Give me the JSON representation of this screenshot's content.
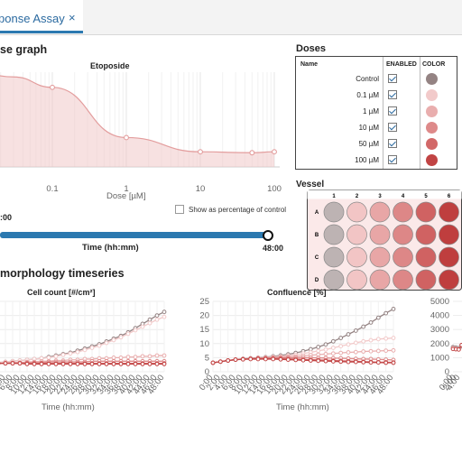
{
  "tab": {
    "label": "ponse Assay",
    "close": "×"
  },
  "dose_response": {
    "section_title": "se graph",
    "chart_title": "Etoposide",
    "xlabel": "Dose [µM]",
    "x_ticks": [
      "0.1",
      "1",
      "10",
      "100"
    ],
    "checkbox_label": "Show as percentage of control",
    "chart_data": {
      "type": "area",
      "title": "Etoposide",
      "xlabel": "Dose [µM]",
      "x_scale": "log",
      "x": [
        0.1,
        1,
        10,
        50,
        100
      ],
      "y_relative": [
        0.84,
        0.31,
        0.16,
        0.15,
        0.16
      ],
      "color": "#e8a4a4"
    }
  },
  "time_slider": {
    "left_label": ":00",
    "right_label": "48:00",
    "axis_label": "Time (hh:mm)",
    "value_fraction": 1.0,
    "color": "#2b79b0"
  },
  "doses": {
    "title": "Doses",
    "headers": {
      "name": "Name",
      "enabled": "ENABLED",
      "color": "COLOR"
    },
    "items": [
      {
        "name": "Control",
        "color": "#948383"
      },
      {
        "name": "0.1 µM",
        "color": "#f2caca"
      },
      {
        "name": "1 µM",
        "color": "#e9aeae"
      },
      {
        "name": "10 µM",
        "color": "#de8a8a"
      },
      {
        "name": "50 µM",
        "color": "#d26868"
      },
      {
        "name": "100 µM",
        "color": "#c14444"
      }
    ]
  },
  "vessel": {
    "title": "Vessel",
    "columns": [
      "1",
      "2",
      "3",
      "4",
      "5",
      "6"
    ],
    "rows": [
      "A",
      "B",
      "C",
      "D"
    ],
    "well_colors": [
      "#bdb3b3",
      "#f2c5c5",
      "#e8a6a6",
      "#dd8787",
      "#d06262",
      "#bf3e3e"
    ]
  },
  "timeseries": {
    "section_title": "morphology timeseries",
    "x_ticks": [
      "0:00",
      "2:00",
      "4:00",
      "6:00",
      "8:00",
      "10:00",
      "12:00",
      "14:00",
      "16:00",
      "18:00",
      "20:00",
      "22:00",
      "24:00",
      "26:00",
      "28:00",
      "30:00",
      "32:00",
      "34:00",
      "36:00",
      "38:00",
      "40:00",
      "42:00",
      "44:00",
      "46:00",
      "48:00"
    ],
    "charts": [
      {
        "title": "Cell count [#/cm²]",
        "xlabel": "Time (hh:mm)",
        "chart_data": {
          "type": "line",
          "x_hours": [
            0,
            2,
            4,
            6,
            8,
            10,
            12,
            14,
            16,
            18,
            20,
            22,
            24,
            26,
            28,
            30,
            32,
            34,
            36,
            38,
            40,
            42,
            44,
            46,
            48
          ],
          "series_relative": [
            {
              "color": "#948383",
              "values": [
                0.12,
                0.13,
                0.14,
                0.15,
                0.16,
                0.17,
                0.18,
                0.19,
                0.21,
                0.23,
                0.25,
                0.27,
                0.3,
                0.33,
                0.36,
                0.39,
                0.43,
                0.47,
                0.51,
                0.56,
                0.62,
                0.68,
                0.74,
                0.8,
                0.85
              ]
            },
            {
              "color": "#f2caca",
              "values": [
                0.12,
                0.13,
                0.14,
                0.15,
                0.16,
                0.17,
                0.18,
                0.19,
                0.2,
                0.22,
                0.24,
                0.26,
                0.28,
                0.31,
                0.34,
                0.37,
                0.41,
                0.45,
                0.49,
                0.54,
                0.59,
                0.64,
                0.69,
                0.74,
                0.78
              ]
            },
            {
              "color": "#e9aeae",
              "values": [
                0.12,
                0.12,
                0.13,
                0.13,
                0.13,
                0.14,
                0.14,
                0.15,
                0.15,
                0.16,
                0.16,
                0.17,
                0.17,
                0.18,
                0.18,
                0.19,
                0.19,
                0.2,
                0.2,
                0.21,
                0.21,
                0.22,
                0.22,
                0.23,
                0.23
              ]
            },
            {
              "color": "#de8a8a",
              "values": [
                0.12,
                0.12,
                0.12,
                0.13,
                0.13,
                0.13,
                0.13,
                0.13,
                0.14,
                0.14,
                0.14,
                0.14,
                0.14,
                0.14,
                0.15,
                0.15,
                0.15,
                0.15,
                0.15,
                0.15,
                0.15,
                0.15,
                0.15,
                0.15,
                0.15
              ]
            },
            {
              "color": "#d26868",
              "values": [
                0.12,
                0.12,
                0.12,
                0.12,
                0.12,
                0.12,
                0.12,
                0.12,
                0.12,
                0.12,
                0.12,
                0.12,
                0.12,
                0.12,
                0.12,
                0.12,
                0.12,
                0.12,
                0.12,
                0.12,
                0.12,
                0.12,
                0.12,
                0.12,
                0.12
              ]
            },
            {
              "color": "#c14444",
              "values": [
                0.12,
                0.12,
                0.12,
                0.12,
                0.12,
                0.11,
                0.11,
                0.11,
                0.11,
                0.11,
                0.11,
                0.11,
                0.11,
                0.11,
                0.11,
                0.11,
                0.11,
                0.11,
                0.11,
                0.11,
                0.11,
                0.11,
                0.11,
                0.11,
                0.11
              ]
            }
          ]
        }
      },
      {
        "title": "Confluence [%]",
        "xlabel": "Time (hh:mm)",
        "y_ticks": [
          "0",
          "5",
          "10",
          "15",
          "20",
          "25"
        ],
        "chart_data": {
          "type": "line",
          "ylim": [
            0,
            25
          ],
          "x_hours": [
            0,
            2,
            4,
            6,
            8,
            10,
            12,
            14,
            16,
            18,
            20,
            22,
            24,
            26,
            28,
            30,
            32,
            34,
            36,
            38,
            40,
            42,
            44,
            46,
            48
          ],
          "series": [
            {
              "color": "#948383",
              "values": [
                3.2,
                3.6,
                4.0,
                4.3,
                4.6,
                4.8,
                5.0,
                5.2,
                5.5,
                5.8,
                6.2,
                6.7,
                7.3,
                8.0,
                8.8,
                9.7,
                10.8,
                12.0,
                13.3,
                14.6,
                16.0,
                17.5,
                19.2,
                20.8,
                22.3
              ]
            },
            {
              "color": "#f2caca",
              "values": [
                3.2,
                3.6,
                4.0,
                4.3,
                4.5,
                4.7,
                4.9,
                5.1,
                5.3,
                5.5,
                5.8,
                6.1,
                6.5,
                6.9,
                7.4,
                7.9,
                8.5,
                9.1,
                9.7,
                10.3,
                10.8,
                11.2,
                11.6,
                11.8,
                12.0
              ]
            },
            {
              "color": "#e9aeae",
              "values": [
                3.2,
                3.6,
                4.0,
                4.3,
                4.5,
                4.7,
                4.9,
                5.0,
                5.1,
                5.2,
                5.4,
                5.5,
                5.7,
                5.9,
                6.1,
                6.3,
                6.5,
                6.7,
                6.9,
                7.0,
                7.2,
                7.3,
                7.4,
                7.5,
                7.6
              ]
            },
            {
              "color": "#de8a8a",
              "values": [
                3.2,
                3.6,
                4.0,
                4.3,
                4.5,
                4.7,
                4.8,
                4.9,
                4.9,
                5.0,
                5.0,
                5.0,
                5.0,
                5.0,
                4.9,
                4.9,
                4.8,
                4.8,
                4.7,
                4.6,
                4.5,
                4.5,
                4.4,
                4.3,
                4.2
              ]
            },
            {
              "color": "#d26868",
              "values": [
                3.2,
                3.6,
                4.0,
                4.3,
                4.5,
                4.6,
                4.7,
                4.7,
                4.7,
                4.7,
                4.6,
                4.5,
                4.4,
                4.3,
                4.2,
                4.1,
                4.0,
                3.9,
                3.8,
                3.7,
                3.6,
                3.5,
                3.4,
                3.4,
                3.3
              ]
            },
            {
              "color": "#c14444",
              "values": [
                3.2,
                3.6,
                4.0,
                4.3,
                4.4,
                4.5,
                4.5,
                4.5,
                4.5,
                4.4,
                4.3,
                4.2,
                4.1,
                4.0,
                3.9,
                3.8,
                3.7,
                3.6,
                3.5,
                3.5,
                3.4,
                3.3,
                3.3,
                3.2,
                3.2
              ]
            }
          ]
        }
      },
      {
        "title": "",
        "xlabel": "",
        "y_ticks": [
          "0",
          "1000",
          "2000",
          "3000",
          "4000",
          "5000"
        ],
        "chart_data": {
          "type": "line",
          "ylim": [
            0,
            5000
          ],
          "x_hours": [
            0,
            2,
            4,
            6
          ],
          "series": [
            {
              "color": "#948383",
              "values": [
                1750,
                1720,
                1680,
                1800
              ]
            },
            {
              "color": "#e9aeae",
              "values": [
                1680,
                1650,
                1600,
                1850
              ]
            },
            {
              "color": "#c14444",
              "values": [
                1620,
                1600,
                1580,
                1900
              ]
            }
          ]
        }
      }
    ]
  }
}
